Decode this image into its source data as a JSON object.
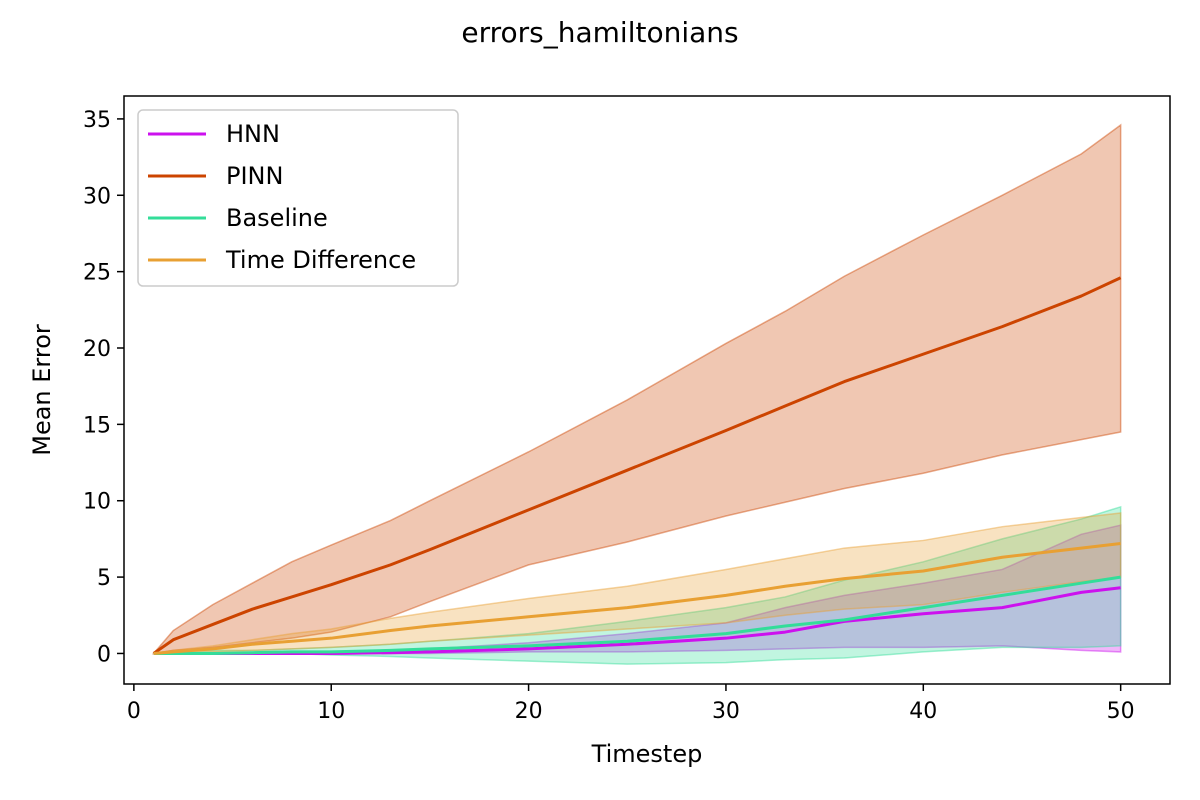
{
  "chart_data": {
    "type": "line",
    "title": "errors_hamiltonians",
    "xlabel": "Timestep",
    "ylabel": "Mean Error",
    "xlim": [
      -0.5,
      52.5
    ],
    "ylim": [
      -2,
      36.5
    ],
    "xticks": [
      0,
      10,
      20,
      30,
      40,
      50
    ],
    "yticks": [
      0,
      5,
      10,
      15,
      20,
      25,
      30,
      35
    ],
    "legend_position": "upper-left",
    "grid": false,
    "x": [
      1,
      2,
      4,
      6,
      8,
      10,
      13,
      15,
      20,
      25,
      30,
      33,
      36,
      40,
      44,
      48,
      50
    ],
    "series": [
      {
        "name": "HNN",
        "color": "#cc11ee",
        "values": [
          0,
          0,
          0,
          0,
          0,
          0,
          0.05,
          0.1,
          0.3,
          0.6,
          1.0,
          1.4,
          2.1,
          2.6,
          3.0,
          4.0,
          4.3
        ],
        "lower": [
          0,
          0,
          0,
          0,
          0,
          0,
          0,
          0,
          0.1,
          0.1,
          0.2,
          0.3,
          0.4,
          0.4,
          0.5,
          0.2,
          0.1
        ],
        "upper": [
          0,
          0,
          0,
          0,
          0,
          0.1,
          0.2,
          0.3,
          0.7,
          1.3,
          2.0,
          3.0,
          3.8,
          4.6,
          5.5,
          7.8,
          8.4
        ]
      },
      {
        "name": "PINN",
        "color": "#cc4400",
        "values": [
          0,
          0.9,
          1.9,
          2.9,
          3.7,
          4.5,
          5.8,
          6.8,
          9.4,
          12.0,
          14.6,
          16.2,
          17.8,
          19.6,
          21.4,
          23.4,
          24.6
        ],
        "lower": [
          0,
          0.2,
          0.4,
          0.7,
          1.0,
          1.4,
          2.4,
          3.4,
          5.8,
          7.3,
          9.0,
          9.9,
          10.8,
          11.8,
          13.0,
          14.0,
          14.5
        ],
        "upper": [
          0,
          1.5,
          3.2,
          4.6,
          6.0,
          7.1,
          8.7,
          10.0,
          13.2,
          16.6,
          20.3,
          22.4,
          24.7,
          27.4,
          30.0,
          32.7,
          34.6
        ]
      },
      {
        "name": "Baseline",
        "color": "#33dd99",
        "values": [
          0,
          0,
          0,
          0.05,
          0.1,
          0.1,
          0.2,
          0.3,
          0.5,
          0.8,
          1.3,
          1.8,
          2.2,
          3.0,
          3.8,
          4.6,
          5.0
        ],
        "lower": [
          0,
          0,
          0,
          0,
          0,
          -0.1,
          -0.2,
          -0.3,
          -0.5,
          -0.7,
          -0.6,
          -0.4,
          -0.3,
          0.1,
          0.4,
          0.4,
          0.5
        ],
        "upper": [
          0,
          0.1,
          0.2,
          0.2,
          0.3,
          0.4,
          0.6,
          0.8,
          1.3,
          2.1,
          3.0,
          3.7,
          4.8,
          6.0,
          7.5,
          8.8,
          9.6
        ]
      },
      {
        "name": "Time Difference",
        "color": "#e8a033",
        "values": [
          0,
          0.1,
          0.3,
          0.6,
          0.8,
          1.0,
          1.5,
          1.8,
          2.4,
          3.0,
          3.8,
          4.4,
          4.9,
          5.4,
          6.3,
          6.9,
          7.2
        ],
        "lower": [
          0,
          0,
          0.1,
          0.2,
          0.3,
          0.4,
          0.6,
          0.8,
          1.2,
          1.6,
          2.0,
          2.5,
          2.9,
          3.2,
          4.0,
          4.7,
          5.0
        ],
        "upper": [
          0,
          0.2,
          0.5,
          0.9,
          1.3,
          1.6,
          2.3,
          2.7,
          3.6,
          4.4,
          5.5,
          6.2,
          6.9,
          7.4,
          8.3,
          8.9,
          9.2
        ]
      }
    ]
  }
}
